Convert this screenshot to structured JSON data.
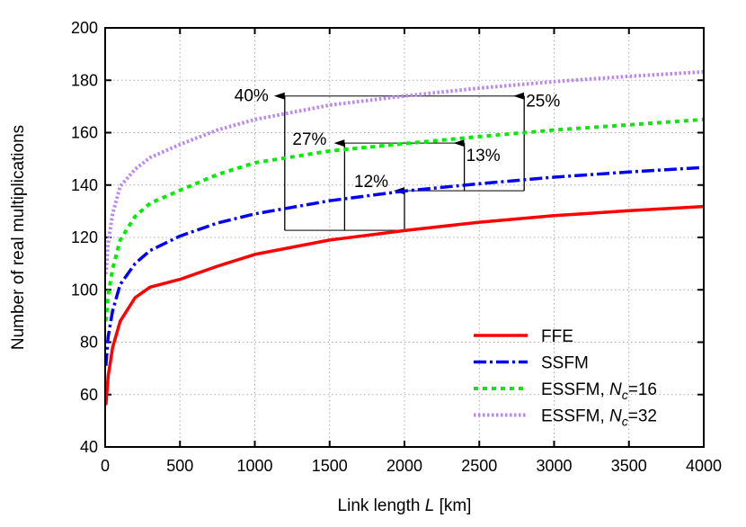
{
  "chart_data": {
    "type": "line",
    "title": "",
    "xlabel": "Link length L [km]",
    "ylabel": "Number of real multiplications",
    "xlim": [
      0,
      4000
    ],
    "ylim": [
      40,
      200
    ],
    "xticks": [
      0,
      500,
      1000,
      1500,
      2000,
      2500,
      3000,
      3500,
      4000
    ],
    "yticks": [
      40,
      60,
      80,
      100,
      120,
      140,
      160,
      180,
      200
    ],
    "grid": true,
    "legend_position": "bottom-right",
    "series": [
      {
        "name": "FFE",
        "color": "#ff0000",
        "style": "solid",
        "x": [
          5,
          20,
          50,
          100,
          200,
          300,
          500,
          750,
          1000,
          1500,
          2000,
          2500,
          3000,
          3500,
          4000
        ],
        "y": [
          56,
          67,
          78,
          88,
          97,
          101,
          104,
          109,
          113.5,
          119,
          122.6,
          125.8,
          128.3,
          130.2,
          131.8
        ]
      },
      {
        "name": "SSFM",
        "color": "#0000ff",
        "style": "dashdot",
        "x": [
          5,
          20,
          50,
          100,
          200,
          300,
          500,
          750,
          1000,
          1500,
          2000,
          2500,
          3000,
          3500,
          4000
        ],
        "y": [
          71,
          82,
          92,
          102,
          110,
          115,
          120.5,
          125.5,
          129,
          134,
          137.7,
          140.5,
          143,
          145,
          146.7
        ]
      },
      {
        "name": "ESSFM, Nc=16",
        "color": "#00ee00",
        "style": "dashed",
        "x": [
          5,
          20,
          50,
          100,
          200,
          300,
          500,
          750,
          1000,
          1500,
          2000,
          2500,
          3000,
          3500,
          4000
        ],
        "y": [
          88,
          98,
          108,
          119,
          128,
          133,
          138,
          144,
          148.5,
          153,
          155.8,
          158.5,
          161,
          163,
          165
        ]
      },
      {
        "name": "ESSFM, Nc=32",
        "color": "#bb88ee",
        "style": "dotted",
        "x": [
          5,
          20,
          50,
          100,
          200,
          300,
          500,
          750,
          1000,
          1500,
          2000,
          2500,
          3000,
          3500,
          4000
        ],
        "y": [
          106,
          118,
          129,
          139.5,
          146,
          150.5,
          155.5,
          161,
          165,
          170.5,
          174,
          177,
          179.5,
          181.5,
          183.2
        ]
      }
    ],
    "annotations": [
      {
        "label": "40%",
        "x": 1200,
        "from": 122.7,
        "to": 174
      },
      {
        "label": "27%",
        "x": 1600,
        "from": 122.7,
        "to": 156
      },
      {
        "label": "12%",
        "x": 2000,
        "from": 122.7,
        "to": 137.8
      },
      {
        "label": "13%",
        "x": 2400,
        "from": 137.8,
        "to": 156
      },
      {
        "label": "25%",
        "x": 2800,
        "from": 137.8,
        "to": 174
      }
    ]
  }
}
